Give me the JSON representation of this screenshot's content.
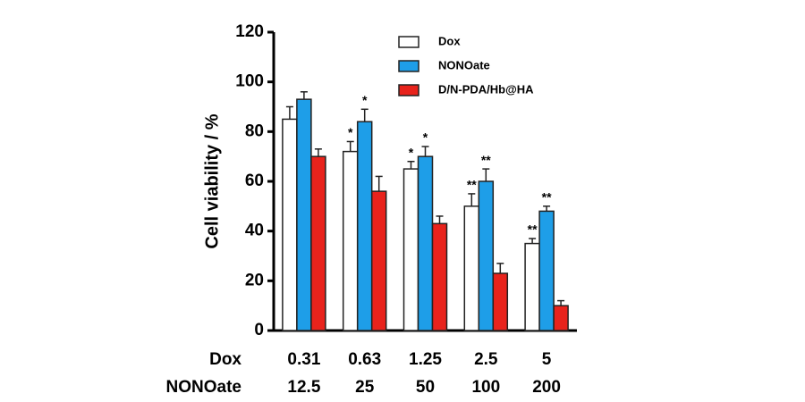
{
  "chart_data": {
    "type": "bar",
    "y_label": "Cell viability / %",
    "categories": [
      "0.31",
      "0.63",
      "1.25",
      "2.5",
      "5"
    ],
    "x_rows": [
      {
        "name": "Dox",
        "labels": [
          "0.31",
          "0.63",
          "1.25",
          "2.5",
          "5"
        ]
      },
      {
        "name": "NONOate",
        "labels": [
          "12.5",
          "25",
          "50",
          "100",
          "200"
        ]
      }
    ],
    "series": [
      {
        "name": "Dox",
        "color": "#ffffff",
        "values": [
          85,
          72,
          65,
          50,
          35
        ],
        "errors": [
          5,
          4,
          3,
          5,
          2
        ],
        "significance": [
          null,
          "*",
          "*",
          "**",
          "**"
        ]
      },
      {
        "name": "NONOate",
        "color": "#1e9ee8",
        "values": [
          93,
          84,
          70,
          60,
          48
        ],
        "errors": [
          3,
          5,
          4,
          5,
          2
        ],
        "significance": [
          null,
          "*",
          "*",
          "**",
          "**"
        ]
      },
      {
        "name": "D/N-PDA/Hb@HA",
        "color": "#e8231c",
        "values": [
          70,
          56,
          43,
          23,
          10
        ],
        "errors": [
          3,
          6,
          3,
          4,
          2
        ],
        "significance": [
          null,
          null,
          null,
          null,
          null
        ]
      }
    ],
    "ylim": [
      0,
      120
    ],
    "yticks": [
      0,
      20,
      40,
      60,
      80,
      100,
      120
    ],
    "grid": false
  }
}
